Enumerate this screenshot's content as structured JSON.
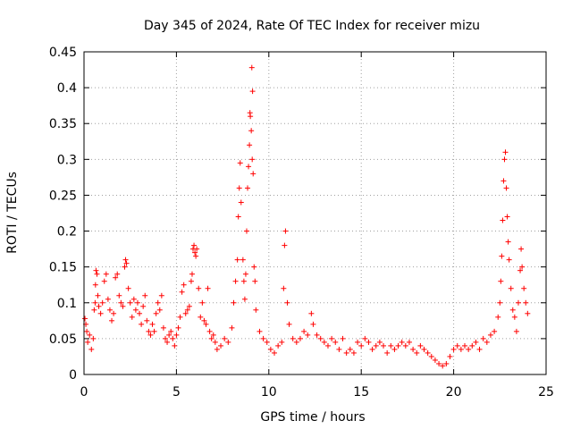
{
  "chart_data": {
    "type": "scatter",
    "title": "Day 345 of 2024, Rate Of TEC Index for receiver mizu",
    "xlabel": "GPS time / hours",
    "ylabel": "ROTI / TECUs",
    "xlim": [
      0,
      25
    ],
    "ylim": [
      0,
      0.45
    ],
    "xticks": [
      "0",
      "5",
      "10",
      "15",
      "20",
      "25"
    ],
    "yticks": [
      "0",
      "0.05",
      "0.1",
      "0.15",
      "0.2",
      "0.25",
      "0.3",
      "0.35",
      "0.4",
      "0.45"
    ],
    "grid": true,
    "marker": "plus",
    "series": [
      {
        "name": "ROTI",
        "color": "#ff0000",
        "points": [
          [
            0.05,
            0.078
          ],
          [
            0.1,
            0.07
          ],
          [
            0.15,
            0.06
          ],
          [
            0.2,
            0.045
          ],
          [
            0.3,
            0.055
          ],
          [
            0.4,
            0.035
          ],
          [
            0.5,
            0.05
          ],
          [
            0.55,
            0.09
          ],
          [
            0.6,
            0.1
          ],
          [
            0.62,
            0.125
          ],
          [
            0.65,
            0.145
          ],
          [
            0.7,
            0.14
          ],
          [
            0.75,
            0.11
          ],
          [
            0.8,
            0.095
          ],
          [
            0.9,
            0.085
          ],
          [
            1.0,
            0.1
          ],
          [
            1.1,
            0.13
          ],
          [
            1.2,
            0.14
          ],
          [
            1.3,
            0.105
          ],
          [
            1.4,
            0.09
          ],
          [
            1.5,
            0.075
          ],
          [
            1.6,
            0.085
          ],
          [
            1.7,
            0.135
          ],
          [
            1.8,
            0.14
          ],
          [
            1.9,
            0.11
          ],
          [
            2.0,
            0.1
          ],
          [
            2.1,
            0.095
          ],
          [
            2.2,
            0.15
          ],
          [
            2.25,
            0.16
          ],
          [
            2.3,
            0.155
          ],
          [
            2.4,
            0.12
          ],
          [
            2.5,
            0.1
          ],
          [
            2.6,
            0.08
          ],
          [
            2.7,
            0.105
          ],
          [
            2.8,
            0.09
          ],
          [
            2.9,
            0.1
          ],
          [
            3.0,
            0.085
          ],
          [
            3.1,
            0.07
          ],
          [
            3.2,
            0.095
          ],
          [
            3.3,
            0.11
          ],
          [
            3.4,
            0.075
          ],
          [
            3.5,
            0.06
          ],
          [
            3.6,
            0.055
          ],
          [
            3.7,
            0.07
          ],
          [
            3.8,
            0.06
          ],
          [
            3.9,
            0.085
          ],
          [
            4.0,
            0.1
          ],
          [
            4.1,
            0.09
          ],
          [
            4.2,
            0.11
          ],
          [
            4.3,
            0.065
          ],
          [
            4.4,
            0.05
          ],
          [
            4.5,
            0.045
          ],
          [
            4.6,
            0.055
          ],
          [
            4.7,
            0.06
          ],
          [
            4.8,
            0.05
          ],
          [
            4.9,
            0.04
          ],
          [
            5.0,
            0.055
          ],
          [
            5.1,
            0.065
          ],
          [
            5.2,
            0.08
          ],
          [
            5.3,
            0.115
          ],
          [
            5.4,
            0.125
          ],
          [
            5.5,
            0.085
          ],
          [
            5.6,
            0.09
          ],
          [
            5.7,
            0.095
          ],
          [
            5.8,
            0.13
          ],
          [
            5.85,
            0.14
          ],
          [
            5.9,
            0.175
          ],
          [
            5.95,
            0.18
          ],
          [
            6.0,
            0.17
          ],
          [
            6.05,
            0.165
          ],
          [
            6.1,
            0.175
          ],
          [
            6.2,
            0.12
          ],
          [
            6.3,
            0.08
          ],
          [
            6.4,
            0.1
          ],
          [
            6.5,
            0.075
          ],
          [
            6.6,
            0.07
          ],
          [
            6.7,
            0.12
          ],
          [
            6.8,
            0.06
          ],
          [
            6.9,
            0.05
          ],
          [
            7.0,
            0.055
          ],
          [
            7.1,
            0.045
          ],
          [
            7.2,
            0.035
          ],
          [
            7.4,
            0.04
          ],
          [
            7.6,
            0.05
          ],
          [
            7.8,
            0.045
          ],
          [
            8.0,
            0.065
          ],
          [
            8.1,
            0.1
          ],
          [
            8.2,
            0.13
          ],
          [
            8.3,
            0.16
          ],
          [
            8.35,
            0.22
          ],
          [
            8.4,
            0.26
          ],
          [
            8.45,
            0.295
          ],
          [
            8.5,
            0.24
          ],
          [
            8.6,
            0.16
          ],
          [
            8.65,
            0.13
          ],
          [
            8.7,
            0.105
          ],
          [
            8.75,
            0.14
          ],
          [
            8.8,
            0.2
          ],
          [
            8.85,
            0.26
          ],
          [
            8.9,
            0.29
          ],
          [
            8.95,
            0.32
          ],
          [
            9.0,
            0.36
          ],
          [
            9.05,
            0.34
          ],
          [
            9.1,
            0.3
          ],
          [
            9.15,
            0.28
          ],
          [
            9.2,
            0.15
          ],
          [
            9.25,
            0.13
          ],
          [
            9.3,
            0.09
          ],
          [
            9.5,
            0.06
          ],
          [
            9.7,
            0.05
          ],
          [
            9.9,
            0.045
          ],
          [
            10.1,
            0.035
          ],
          [
            10.3,
            0.03
          ],
          [
            10.5,
            0.04
          ],
          [
            10.7,
            0.045
          ],
          [
            10.8,
            0.12
          ],
          [
            10.85,
            0.18
          ],
          [
            10.9,
            0.2
          ],
          [
            11.0,
            0.1
          ],
          [
            11.1,
            0.07
          ],
          [
            11.3,
            0.05
          ],
          [
            11.5,
            0.045
          ],
          [
            11.7,
            0.05
          ],
          [
            11.9,
            0.06
          ],
          [
            12.1,
            0.055
          ],
          [
            12.3,
            0.085
          ],
          [
            12.4,
            0.07
          ],
          [
            12.6,
            0.055
          ],
          [
            12.8,
            0.05
          ],
          [
            13.0,
            0.045
          ],
          [
            13.2,
            0.04
          ],
          [
            13.4,
            0.05
          ],
          [
            13.6,
            0.045
          ],
          [
            13.8,
            0.035
          ],
          [
            14.0,
            0.05
          ],
          [
            14.2,
            0.03
          ],
          [
            14.4,
            0.035
          ],
          [
            14.6,
            0.03
          ],
          [
            14.8,
            0.045
          ],
          [
            15.0,
            0.04
          ],
          [
            15.2,
            0.05
          ],
          [
            15.4,
            0.045
          ],
          [
            15.6,
            0.035
          ],
          [
            15.8,
            0.04
          ],
          [
            16.0,
            0.045
          ],
          [
            16.2,
            0.04
          ],
          [
            16.4,
            0.03
          ],
          [
            16.6,
            0.04
          ],
          [
            16.8,
            0.035
          ],
          [
            17.0,
            0.04
          ],
          [
            17.2,
            0.045
          ],
          [
            17.4,
            0.04
          ],
          [
            17.6,
            0.045
          ],
          [
            17.8,
            0.035
          ],
          [
            18.0,
            0.03
          ],
          [
            18.2,
            0.04
          ],
          [
            18.4,
            0.035
          ],
          [
            18.6,
            0.03
          ],
          [
            18.8,
            0.025
          ],
          [
            19.0,
            0.02
          ],
          [
            19.2,
            0.015
          ],
          [
            19.4,
            0.012
          ],
          [
            19.6,
            0.015
          ],
          [
            19.8,
            0.025
          ],
          [
            20.0,
            0.035
          ],
          [
            20.2,
            0.04
          ],
          [
            20.4,
            0.035
          ],
          [
            20.6,
            0.04
          ],
          [
            20.8,
            0.035
          ],
          [
            21.0,
            0.04
          ],
          [
            21.2,
            0.045
          ],
          [
            21.4,
            0.035
          ],
          [
            21.6,
            0.05
          ],
          [
            21.8,
            0.045
          ],
          [
            22.0,
            0.055
          ],
          [
            22.2,
            0.06
          ],
          [
            22.4,
            0.08
          ],
          [
            22.5,
            0.1
          ],
          [
            22.55,
            0.13
          ],
          [
            22.6,
            0.165
          ],
          [
            22.65,
            0.215
          ],
          [
            22.7,
            0.27
          ],
          [
            22.75,
            0.3
          ],
          [
            22.8,
            0.31
          ],
          [
            22.85,
            0.26
          ],
          [
            22.9,
            0.22
          ],
          [
            22.95,
            0.185
          ],
          [
            23.0,
            0.16
          ],
          [
            23.1,
            0.12
          ],
          [
            23.2,
            0.09
          ],
          [
            23.3,
            0.08
          ],
          [
            23.4,
            0.06
          ],
          [
            23.5,
            0.1
          ],
          [
            23.6,
            0.145
          ],
          [
            23.65,
            0.175
          ],
          [
            23.7,
            0.15
          ],
          [
            23.8,
            0.12
          ],
          [
            23.9,
            0.1
          ],
          [
            24.0,
            0.085
          ],
          [
            9.08,
            0.428
          ],
          [
            9.12,
            0.395
          ],
          [
            8.98,
            0.365
          ]
        ]
      }
    ]
  }
}
